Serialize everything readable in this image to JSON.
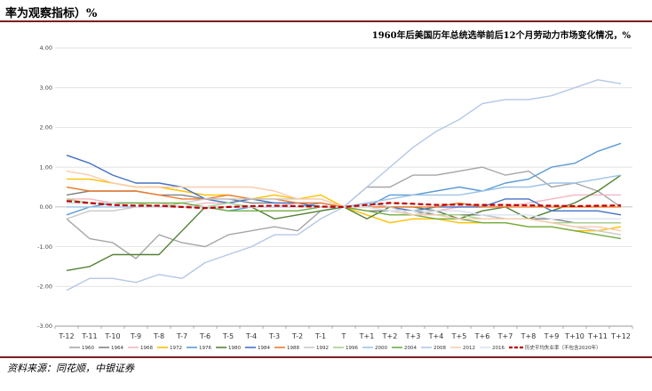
{
  "header": {
    "title": "率为观察指标）%"
  },
  "footer": {
    "source": "资料来源：同花顺，中银证券"
  },
  "chart_data": {
    "type": "line",
    "title": "1960年后美国历年总统选举前后12个月劳动力市场变化情况，%",
    "xlabel": "",
    "ylabel": "",
    "ylim": [
      -3,
      4
    ],
    "yticks": [
      "-3.00",
      "-2.00",
      "-1.00",
      "0.00",
      "1.00",
      "2.00",
      "3.00",
      "4.00"
    ],
    "ytick_values": [
      -3,
      -2,
      -1,
      0,
      1,
      2,
      3,
      4
    ],
    "grid": true,
    "legend_position": "bottom",
    "categories": [
      "T-12",
      "T-11",
      "T-10",
      "T-9",
      "T-8",
      "T-7",
      "T-6",
      "T-5",
      "T-4",
      "T-3",
      "T-2",
      "T-1",
      "T",
      "T+1",
      "T+2",
      "T+3",
      "T+4",
      "T+5",
      "T+6",
      "T+7",
      "T+8",
      "T+9",
      "T+10",
      "T+11",
      "T+12"
    ],
    "series": [
      {
        "name": "1960",
        "color": "#a6a6a6",
        "dashed": false,
        "values": [
          -0.3,
          -0.8,
          -0.9,
          -1.3,
          -0.7,
          -0.9,
          -1.0,
          -0.7,
          -0.6,
          -0.5,
          -0.6,
          -0.1,
          0.0,
          0.5,
          0.5,
          0.8,
          0.8,
          0.9,
          1.0,
          0.8,
          0.9,
          0.5,
          0.6,
          0.4,
          0.0
        ]
      },
      {
        "name": "1964",
        "color": "#808080",
        "dashed": false,
        "values": [
          0.3,
          0.4,
          0.4,
          0.4,
          0.3,
          0.3,
          0.2,
          0.2,
          0.1,
          0.1,
          0.1,
          0.1,
          0.0,
          -0.1,
          -0.1,
          -0.1,
          -0.2,
          -0.2,
          -0.2,
          -0.3,
          -0.3,
          -0.3,
          -0.4,
          -0.4,
          -0.4
        ]
      },
      {
        "name": "1968",
        "color": "#f4b6c2",
        "dashed": false,
        "values": [
          0.2,
          0.2,
          0.1,
          0.1,
          0.1,
          0.0,
          0.1,
          0.1,
          0.0,
          0.0,
          0.1,
          0.0,
          0.0,
          0.0,
          0.0,
          -0.1,
          -0.1,
          0.0,
          0.0,
          0.0,
          0.1,
          0.2,
          0.3,
          0.3,
          0.3
        ]
      },
      {
        "name": "1972",
        "color": "#ffc000",
        "dashed": false,
        "values": [
          0.7,
          0.7,
          0.6,
          0.5,
          0.5,
          0.4,
          0.3,
          0.3,
          0.2,
          0.3,
          0.2,
          0.3,
          0.0,
          -0.2,
          -0.4,
          -0.3,
          -0.3,
          -0.4,
          -0.4,
          -0.4,
          -0.5,
          -0.5,
          -0.6,
          -0.6,
          -0.5
        ]
      },
      {
        "name": "1976",
        "color": "#5b9bd5",
        "dashed": false,
        "values": [
          -0.2,
          0.0,
          0.1,
          0.1,
          0.0,
          0.0,
          0.0,
          -0.1,
          0.0,
          0.0,
          0.0,
          0.1,
          0.0,
          0.0,
          0.3,
          0.3,
          0.4,
          0.5,
          0.4,
          0.6,
          0.7,
          1.0,
          1.1,
          1.4,
          1.6
        ]
      },
      {
        "name": "1980",
        "color": "#548235",
        "dashed": false,
        "values": [
          -1.6,
          -1.5,
          -1.2,
          -1.2,
          -1.2,
          -0.6,
          0.0,
          0.0,
          0.0,
          -0.3,
          -0.2,
          -0.1,
          0.0,
          -0.3,
          0.0,
          0.0,
          -0.1,
          -0.3,
          -0.1,
          0.0,
          -0.3,
          -0.1,
          0.1,
          0.4,
          0.8
        ]
      },
      {
        "name": "1984",
        "color": "#4472c4",
        "dashed": false,
        "values": [
          1.3,
          1.1,
          0.8,
          0.6,
          0.6,
          0.5,
          0.2,
          0.1,
          0.2,
          0.1,
          0.1,
          0.0,
          0.0,
          0.1,
          0.0,
          -0.1,
          0.0,
          0.0,
          0.0,
          0.2,
          0.2,
          -0.1,
          -0.1,
          -0.1,
          -0.2
        ]
      },
      {
        "name": "1988",
        "color": "#ed7d31",
        "dashed": false,
        "values": [
          0.5,
          0.4,
          0.4,
          0.4,
          0.3,
          0.2,
          0.2,
          0.3,
          0.2,
          0.2,
          0.1,
          0.1,
          0.0,
          0.0,
          0.0,
          0.0,
          0.0,
          0.1,
          0.0,
          0.0,
          0.0,
          0.0,
          0.0,
          0.0,
          0.0
        ]
      },
      {
        "name": "1992",
        "color": "#c9c9c9",
        "dashed": false,
        "values": [
          -0.3,
          -0.1,
          -0.1,
          0.0,
          0.0,
          0.1,
          0.2,
          0.2,
          0.2,
          0.2,
          0.2,
          0.2,
          0.0,
          0.1,
          0.0,
          -0.2,
          -0.1,
          -0.1,
          -0.2,
          -0.3,
          -0.3,
          -0.4,
          -0.5,
          -0.6,
          -0.7
        ]
      },
      {
        "name": "1996",
        "color": "#a9d18e",
        "dashed": false,
        "values": [
          0.2,
          0.1,
          0.1,
          0.1,
          0.0,
          0.1,
          0.0,
          0.1,
          0.0,
          0.0,
          0.0,
          0.0,
          0.0,
          0.0,
          -0.1,
          -0.2,
          -0.2,
          -0.2,
          -0.3,
          -0.3,
          -0.3,
          -0.4,
          -0.4,
          -0.4,
          -0.4
        ]
      },
      {
        "name": "2000",
        "color": "#9dc3e6",
        "dashed": false,
        "values": [
          0.0,
          0.0,
          0.0,
          0.0,
          0.0,
          0.0,
          0.0,
          0.0,
          0.0,
          0.0,
          0.0,
          0.0,
          0.0,
          0.1,
          0.2,
          0.3,
          0.3,
          0.3,
          0.4,
          0.5,
          0.5,
          0.6,
          0.6,
          0.7,
          0.8
        ]
      },
      {
        "name": "2004",
        "color": "#70ad47",
        "dashed": false,
        "values": [
          0.1,
          0.1,
          0.1,
          0.1,
          0.1,
          0.1,
          0.0,
          -0.1,
          -0.1,
          -0.1,
          -0.1,
          0.0,
          0.0,
          -0.1,
          -0.2,
          -0.2,
          -0.3,
          -0.3,
          -0.4,
          -0.4,
          -0.5,
          -0.5,
          -0.6,
          -0.7,
          -0.8
        ]
      },
      {
        "name": "2008",
        "color": "#b4c7e7",
        "dashed": false,
        "values": [
          -2.1,
          -1.8,
          -1.8,
          -1.9,
          -1.7,
          -1.8,
          -1.4,
          -1.2,
          -1.0,
          -0.7,
          -0.7,
          -0.3,
          0.0,
          0.5,
          1.0,
          1.5,
          1.9,
          2.2,
          2.6,
          2.7,
          2.7,
          2.8,
          3.0,
          3.2,
          3.1
        ]
      },
      {
        "name": "2012",
        "color": "#f8cbad",
        "dashed": false,
        "values": [
          0.9,
          0.8,
          0.6,
          0.5,
          0.5,
          0.5,
          0.5,
          0.5,
          0.5,
          0.4,
          0.2,
          0.2,
          0.0,
          0.0,
          -0.1,
          -0.2,
          -0.2,
          -0.3,
          -0.3,
          -0.3,
          -0.3,
          -0.4,
          -0.5,
          -0.5,
          -0.6
        ]
      },
      {
        "name": "2016",
        "color": "#dae3f3",
        "dashed": false,
        "values": [
          0.1,
          0.1,
          0.1,
          0.0,
          0.0,
          0.0,
          0.0,
          0.0,
          0.0,
          0.0,
          0.0,
          0.0,
          0.0,
          0.0,
          -0.1,
          -0.1,
          -0.1,
          -0.1,
          -0.2,
          -0.2,
          -0.2,
          -0.3,
          -0.3,
          -0.3,
          -0.3
        ]
      },
      {
        "name": "历史平均失业率（不包含2020年）",
        "color": "#c00000",
        "dashed": true,
        "values": [
          0.15,
          0.1,
          0.05,
          0.03,
          0.03,
          0.0,
          -0.03,
          0.0,
          0.02,
          0.03,
          0.02,
          0.01,
          0.0,
          0.05,
          0.1,
          0.08,
          0.05,
          0.06,
          0.05,
          0.05,
          0.04,
          0.03,
          0.02,
          0.03,
          0.04
        ]
      }
    ]
  }
}
